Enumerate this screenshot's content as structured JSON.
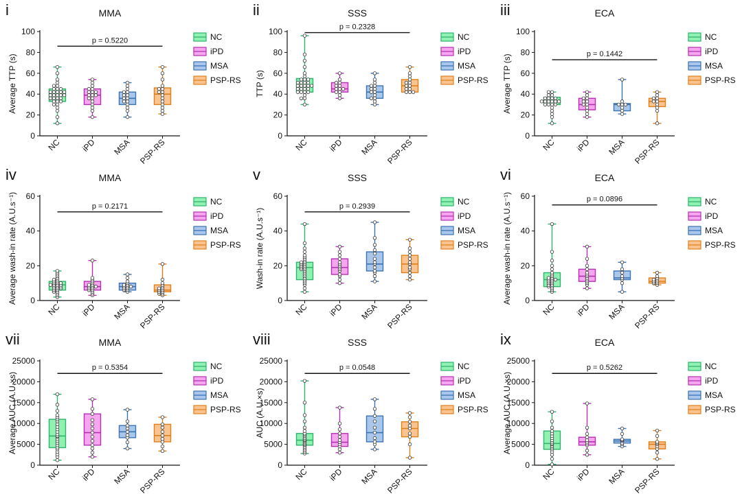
{
  "colors": {
    "NC": {
      "fill": "#8ff2b3",
      "stroke": "#2db36a"
    },
    "iPD": {
      "fill": "#f6a6ee",
      "stroke": "#b52fb3"
    },
    "MSA": {
      "fill": "#a9c7ea",
      "stroke": "#3b73b4"
    },
    "PSP-RS": {
      "fill": "#fbc48f",
      "stroke": "#e07f1a"
    }
  },
  "chart_data": [
    {
      "type": "box",
      "roman": "i",
      "title": "MMA",
      "ylabel": "Average TTP (s)",
      "ylim": [
        0,
        100
      ],
      "yticks": [
        0,
        20,
        40,
        60,
        80,
        100
      ],
      "categories": [
        "NC",
        "iPD",
        "MSA",
        "PSP-RS"
      ],
      "boxes": [
        {
          "min": 12,
          "q1": 33,
          "median": 39,
          "q3": 45,
          "max": 66
        },
        {
          "min": 18,
          "q1": 30,
          "median": 39,
          "q3": 45,
          "max": 54
        },
        {
          "min": 18,
          "q1": 30,
          "median": 36,
          "q3": 42,
          "max": 51
        },
        {
          "min": 21,
          "q1": 30,
          "median": 40,
          "q3": 46,
          "max": 66
        }
      ],
      "points": [
        [
          12,
          18,
          24,
          27,
          30,
          30,
          33,
          33,
          33,
          36,
          36,
          36,
          36,
          39,
          39,
          39,
          39,
          39,
          42,
          42,
          42,
          42,
          42,
          45,
          45,
          45,
          48,
          48,
          51,
          54,
          60,
          66
        ],
        [
          18,
          24,
          27,
          30,
          33,
          36,
          36,
          39,
          39,
          39,
          42,
          42,
          42,
          45,
          45,
          48,
          51,
          54
        ],
        [
          18,
          24,
          27,
          30,
          33,
          33,
          36,
          36,
          39,
          39,
          42,
          42,
          45,
          48,
          51
        ],
        [
          21,
          24,
          27,
          30,
          33,
          36,
          39,
          42,
          42,
          45,
          45,
          48,
          54,
          60,
          66
        ]
      ],
      "pvalue": "p = 0.5220",
      "bracket": {
        "from": 0,
        "to": 3,
        "y": 86
      },
      "legend": [
        "NC",
        "iPD",
        "MSA",
        "PSP-RS"
      ]
    },
    {
      "type": "box",
      "roman": "ii",
      "title": "SSS",
      "ylabel": "TTP (s)",
      "ylim": [
        0,
        100
      ],
      "yticks": [
        0,
        20,
        40,
        60,
        80,
        100
      ],
      "categories": [
        "NC",
        "iPD",
        "MSA",
        "PSP-RS"
      ],
      "boxes": [
        {
          "min": 30,
          "q1": 42,
          "median": 48,
          "q3": 55,
          "max": 96
        },
        {
          "min": 36,
          "q1": 42,
          "median": 45,
          "q3": 51,
          "max": 60
        },
        {
          "min": 30,
          "q1": 36,
          "median": 42,
          "q3": 48,
          "max": 60
        },
        {
          "min": 42,
          "q1": 42,
          "median": 48,
          "q3": 54,
          "max": 66
        }
      ],
      "points": [
        [
          30,
          36,
          36,
          39,
          42,
          42,
          42,
          42,
          45,
          45,
          45,
          45,
          48,
          48,
          48,
          48,
          48,
          51,
          51,
          51,
          51,
          54,
          54,
          54,
          57,
          60,
          66,
          72,
          78,
          96
        ],
        [
          36,
          39,
          42,
          42,
          45,
          45,
          45,
          48,
          48,
          51,
          51,
          54,
          60
        ],
        [
          30,
          33,
          36,
          36,
          39,
          42,
          42,
          45,
          45,
          48,
          48,
          51,
          54,
          60
        ],
        [
          42,
          42,
          42,
          45,
          45,
          48,
          48,
          51,
          51,
          54,
          57,
          60,
          66
        ]
      ],
      "pvalue": "p = 0.2328",
      "bracket": {
        "from": 0,
        "to": 3,
        "y": 99
      },
      "legend": [
        "NC",
        "iPD",
        "MSA",
        "PSP-RS"
      ]
    },
    {
      "type": "box",
      "roman": "iii",
      "title": "ECA",
      "ylabel": "Average TTP (s)",
      "ylim": [
        0,
        100
      ],
      "yticks": [
        0,
        20,
        40,
        60,
        80,
        100
      ],
      "categories": [
        "NC",
        "iPD",
        "MSA",
        "PSP-RS"
      ],
      "boxes": [
        {
          "min": 12,
          "q1": 30,
          "median": 33,
          "q3": 37,
          "max": 42
        },
        {
          "min": 18,
          "q1": 25,
          "median": 30,
          "q3": 36,
          "max": 42
        },
        {
          "min": 21,
          "q1": 24,
          "median": 30,
          "q3": 31,
          "max": 54
        },
        {
          "min": 12,
          "q1": 28,
          "median": 33,
          "q3": 36,
          "max": 42
        }
      ],
      "points": [
        [
          12,
          18,
          21,
          24,
          27,
          30,
          30,
          30,
          30,
          33,
          33,
          33,
          33,
          33,
          33,
          36,
          36,
          36,
          36,
          39,
          39,
          42,
          42
        ],
        [
          18,
          21,
          24,
          27,
          30,
          30,
          33,
          33,
          36,
          36,
          39,
          42
        ],
        [
          21,
          24,
          27,
          30,
          30,
          30,
          33,
          54
        ],
        [
          12,
          24,
          27,
          30,
          33,
          33,
          36,
          36,
          39,
          42
        ]
      ],
      "pvalue": "p = 0.1442",
      "bracket": {
        "from": 0,
        "to": 3,
        "y": 73
      },
      "legend": [
        "NC",
        "iPD",
        "MSA",
        "PSP-RS"
      ]
    },
    {
      "type": "box",
      "roman": "iv",
      "title": "MMA",
      "ylabel": "Average wash-in rate (A.U.s⁻¹)",
      "ylim": [
        0,
        60
      ],
      "yticks": [
        0,
        20,
        40,
        60
      ],
      "categories": [
        "NC",
        "iPD",
        "MSA",
        "PSP-RS"
      ],
      "boxes": [
        {
          "min": 2,
          "q1": 6,
          "median": 9,
          "q3": 11,
          "max": 17
        },
        {
          "min": 3,
          "q1": 6,
          "median": 8,
          "q3": 11,
          "max": 23
        },
        {
          "min": 5,
          "q1": 6,
          "median": 8,
          "q3": 10,
          "max": 15
        },
        {
          "min": 3,
          "q1": 5,
          "median": 6,
          "q3": 9,
          "max": 21
        }
      ],
      "points": [
        [
          2,
          3,
          4,
          5,
          5,
          6,
          6,
          7,
          7,
          7,
          8,
          8,
          8,
          9,
          9,
          9,
          9,
          10,
          10,
          10,
          11,
          11,
          12,
          12,
          13,
          14,
          15,
          16,
          17
        ],
        [
          3,
          4,
          5,
          6,
          6,
          7,
          7,
          8,
          8,
          8,
          9,
          9,
          10,
          11,
          12,
          13,
          23
        ],
        [
          5,
          6,
          6,
          7,
          7,
          8,
          8,
          8,
          9,
          9,
          10,
          11,
          13,
          15
        ],
        [
          3,
          4,
          4,
          5,
          5,
          6,
          6,
          7,
          7,
          8,
          9,
          10,
          12,
          21
        ]
      ],
      "pvalue": "p = 0.2171",
      "bracket": {
        "from": 0,
        "to": 3,
        "y": 51
      },
      "legend": [
        "NC",
        "iPD",
        "MSA",
        "PSP-RS"
      ]
    },
    {
      "type": "box",
      "roman": "v",
      "title": "SSS",
      "ylabel": "Wash-in rate (A.U.s⁻¹)",
      "ylim": [
        0,
        60
      ],
      "yticks": [
        0,
        20,
        40,
        60
      ],
      "categories": [
        "NC",
        "iPD",
        "MSA",
        "PSP-RS"
      ],
      "boxes": [
        {
          "min": 5,
          "q1": 12,
          "median": 19,
          "q3": 22,
          "max": 44
        },
        {
          "min": 10,
          "q1": 15,
          "median": 19,
          "q3": 24,
          "max": 31
        },
        {
          "min": 11,
          "q1": 17,
          "median": 21,
          "q3": 28,
          "max": 45
        },
        {
          "min": 12,
          "q1": 16,
          "median": 21,
          "q3": 26,
          "max": 35
        }
      ],
      "points": [
        [
          5,
          7,
          9,
          10,
          11,
          12,
          13,
          14,
          15,
          16,
          17,
          18,
          18,
          19,
          19,
          20,
          20,
          21,
          21,
          22,
          22,
          23,
          24,
          25,
          26,
          28,
          30,
          33,
          44
        ],
        [
          10,
          12,
          14,
          15,
          17,
          18,
          19,
          20,
          21,
          22,
          24,
          26,
          28,
          31
        ],
        [
          11,
          14,
          16,
          17,
          19,
          21,
          22,
          24,
          27,
          29,
          32,
          36,
          45
        ],
        [
          12,
          14,
          16,
          18,
          19,
          21,
          22,
          24,
          26,
          28,
          30,
          35
        ]
      ],
      "pvalue": "p = 0.2939",
      "bracket": {
        "from": 0,
        "to": 3,
        "y": 51
      },
      "legend": [
        "NC",
        "iPD",
        "MSA",
        "PSP-RS"
      ]
    },
    {
      "type": "box",
      "roman": "vi",
      "title": "ECA",
      "ylabel": "Average wash-in rate (A.U.s⁻¹)",
      "ylim": [
        0,
        60
      ],
      "yticks": [
        0,
        20,
        40,
        60
      ],
      "categories": [
        "NC",
        "iPD",
        "MSA",
        "PSP-RS"
      ],
      "boxes": [
        {
          "min": 5,
          "q1": 8,
          "median": 12,
          "q3": 16,
          "max": 44
        },
        {
          "min": 7,
          "q1": 11,
          "median": 14,
          "q3": 18,
          "max": 31
        },
        {
          "min": 5,
          "q1": 12,
          "median": 13,
          "q3": 17,
          "max": 22
        },
        {
          "min": 9,
          "q1": 10,
          "median": 11,
          "q3": 13,
          "max": 16
        }
      ],
      "points": [
        [
          5,
          6,
          7,
          8,
          8,
          9,
          9,
          10,
          10,
          11,
          11,
          12,
          12,
          12,
          13,
          13,
          14,
          15,
          16,
          18,
          20,
          23,
          28,
          44
        ],
        [
          7,
          9,
          10,
          11,
          12,
          13,
          14,
          15,
          16,
          18,
          20,
          24,
          31
        ],
        [
          5,
          10,
          12,
          13,
          14,
          16,
          18,
          22
        ],
        [
          9,
          10,
          10,
          11,
          11,
          12,
          12,
          13,
          14,
          16
        ]
      ],
      "pvalue": "p = 0.0896",
      "bracket": {
        "from": 0,
        "to": 3,
        "y": 55
      },
      "legend": [
        "NC",
        "iPD",
        "MSA",
        "PSP-RS"
      ]
    },
    {
      "type": "box",
      "roman": "vii",
      "title": "MMA",
      "ylabel": "Average AUC (A.U.×s)",
      "ylim": [
        0,
        25000
      ],
      "yticks": [
        0,
        5000,
        10000,
        15000,
        20000,
        25000
      ],
      "categories": [
        "NC",
        "iPD",
        "MSA",
        "PSP-RS"
      ],
      "boxes": [
        {
          "min": 1200,
          "q1": 4200,
          "median": 7000,
          "q3": 11000,
          "max": 17000
        },
        {
          "min": 2000,
          "q1": 4800,
          "median": 7800,
          "q3": 12300,
          "max": 15800
        },
        {
          "min": 4000,
          "q1": 6600,
          "median": 8000,
          "q3": 9500,
          "max": 13300
        },
        {
          "min": 3400,
          "q1": 5600,
          "median": 7100,
          "q3": 9800,
          "max": 11500
        }
      ],
      "points": [
        [
          1200,
          2000,
          2600,
          3200,
          3800,
          4200,
          4800,
          5300,
          5800,
          6300,
          6800,
          7000,
          7400,
          8000,
          8600,
          9200,
          9800,
          10500,
          11000,
          11500,
          12000,
          13000,
          14500,
          17000
        ],
        [
          2000,
          3000,
          4000,
          4800,
          5800,
          6800,
          7800,
          8800,
          9800,
          10800,
          12300,
          13500,
          15800
        ],
        [
          4000,
          5500,
          6600,
          7200,
          8000,
          8800,
          9500,
          10500,
          13300
        ],
        [
          3400,
          4500,
          5600,
          6300,
          7100,
          8000,
          9000,
          9800,
          11500
        ]
      ],
      "pvalue": "p = 0.5354",
      "bracket": {
        "from": 0,
        "to": 3,
        "y": 22000
      },
      "legend": [
        "NC",
        "iPD",
        "MSA",
        "PSP-RS"
      ]
    },
    {
      "type": "box",
      "roman": "viii",
      "title": "SSS",
      "ylabel": "AUC (A.U.×s)",
      "ylim": [
        0,
        25000
      ],
      "yticks": [
        0,
        5000,
        10000,
        15000,
        20000,
        25000
      ],
      "categories": [
        "NC",
        "iPD",
        "MSA",
        "PSP-RS"
      ],
      "boxes": [
        {
          "min": 2800,
          "q1": 4800,
          "median": 6000,
          "q3": 7600,
          "max": 20200
        },
        {
          "min": 3000,
          "q1": 4500,
          "median": 5500,
          "q3": 7600,
          "max": 13800
        },
        {
          "min": 3800,
          "q1": 5600,
          "median": 7800,
          "q3": 11800,
          "max": 15800
        },
        {
          "min": 1800,
          "q1": 6800,
          "median": 8800,
          "q3": 10400,
          "max": 12500
        }
      ],
      "points": [
        [
          2800,
          3200,
          3600,
          4000,
          4400,
          4800,
          5000,
          5300,
          5600,
          5900,
          6000,
          6300,
          6600,
          7000,
          7300,
          7600,
          8200,
          9000,
          10500,
          12000,
          15000,
          20200
        ],
        [
          3000,
          3800,
          4500,
          5000,
          5500,
          6000,
          6800,
          7600,
          8600,
          10000,
          13800
        ],
        [
          3800,
          5000,
          5600,
          6500,
          7800,
          9000,
          10500,
          11800,
          13500,
          15800
        ],
        [
          1800,
          5000,
          6800,
          7600,
          8800,
          9500,
          10400,
          11500,
          12500
        ]
      ],
      "pvalue": "p = 0.0548",
      "bracket": {
        "from": 0,
        "to": 3,
        "y": 22000
      },
      "legend": [
        "NC",
        "iPD",
        "MSA",
        "PSP-RS"
      ]
    },
    {
      "type": "box",
      "roman": "ix",
      "title": "ECA",
      "ylabel": "Average AUC (A.U.×s)",
      "ylim": [
        0,
        25000
      ],
      "yticks": [
        0,
        5000,
        10000,
        15000,
        20000,
        25000
      ],
      "categories": [
        "NC",
        "iPD",
        "MSA",
        "PSP-RS"
      ],
      "boxes": [
        {
          "min": 200,
          "q1": 3800,
          "median": 5200,
          "q3": 8200,
          "max": 12800
        },
        {
          "min": 2500,
          "q1": 4800,
          "median": 5600,
          "q3": 6700,
          "max": 14800
        },
        {
          "min": 4500,
          "q1": 5300,
          "median": 5800,
          "q3": 6200,
          "max": 8800
        },
        {
          "min": 1500,
          "q1": 3900,
          "median": 5000,
          "q3": 5600,
          "max": 8300
        }
      ],
      "points": [
        [
          200,
          1500,
          2500,
          3200,
          3800,
          4200,
          4600,
          5000,
          5200,
          5600,
          6000,
          6500,
          7000,
          7600,
          8200,
          9000,
          10500,
          12800
        ],
        [
          2500,
          3500,
          4800,
          5200,
          5600,
          6000,
          6700,
          7500,
          9000,
          14800
        ],
        [
          4500,
          5000,
          5300,
          5800,
          6000,
          6200,
          7500,
          8800
        ],
        [
          1500,
          3000,
          3900,
          4500,
          5000,
          5300,
          5600,
          7000,
          8300
        ]
      ],
      "pvalue": "p = 0.5262",
      "bracket": {
        "from": 0,
        "to": 3,
        "y": 22000
      },
      "legend": [
        "NC",
        "iPD",
        "MSA",
        "PSP-RS"
      ]
    }
  ]
}
